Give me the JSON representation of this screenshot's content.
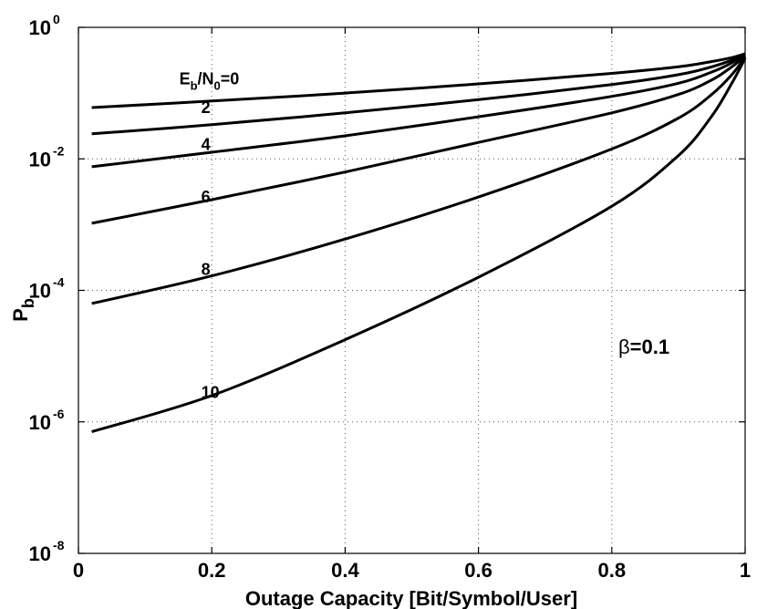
{
  "chart_data": {
    "type": "line",
    "title": "",
    "xlabel": "Outage Capacity [Bit/Symbol/User]",
    "ylabel": "P_b",
    "ylabel_main": "P",
    "ylabel_sub": "b",
    "xlim": [
      0,
      1
    ],
    "ylim_log10": [
      -8,
      0
    ],
    "yscale": "log",
    "grid": true,
    "x_ticks": [
      "0",
      "0.2",
      "0.4",
      "0.6",
      "0.8",
      "1"
    ],
    "x_tick_values": [
      0,
      0.2,
      0.4,
      0.6,
      0.8,
      1
    ],
    "y_ticks": [
      {
        "value": 0,
        "base": "10",
        "exp": "0"
      },
      {
        "value": -2,
        "base": "10",
        "exp": "-2"
      },
      {
        "value": -4,
        "base": "10",
        "exp": "-4"
      },
      {
        "value": -6,
        "base": "10",
        "exp": "-6"
      },
      {
        "value": -8,
        "base": "10",
        "exp": "-8"
      }
    ],
    "annotation": {
      "symbol": "β",
      "text": "=0.1"
    },
    "first_label": {
      "E": "E",
      "b": "b",
      "slash": "/N",
      "zero": "0",
      "eq": "=0"
    },
    "series": [
      {
        "name": "Eb/N0=0",
        "label": "",
        "label_at": [
          0.18,
          -0.78
        ],
        "x": [
          0.02,
          0.2,
          0.4,
          0.6,
          0.8,
          0.9,
          0.95,
          0.98,
          1.0
        ],
        "log10_y": [
          -1.22,
          -1.12,
          -1.0,
          -0.86,
          -0.7,
          -0.6,
          -0.52,
          -0.46,
          -0.4
        ]
      },
      {
        "name": "Eb/N0=2",
        "label": "2",
        "label_at": [
          0.18,
          -1.22
        ],
        "x": [
          0.02,
          0.2,
          0.4,
          0.6,
          0.8,
          0.9,
          0.95,
          0.98,
          1.0
        ],
        "log10_y": [
          -1.62,
          -1.48,
          -1.3,
          -1.1,
          -0.87,
          -0.72,
          -0.6,
          -0.5,
          -0.42
        ]
      },
      {
        "name": "Eb/N0=4",
        "label": "4",
        "label_at": [
          0.18,
          -1.78
        ],
        "x": [
          0.02,
          0.2,
          0.4,
          0.6,
          0.8,
          0.9,
          0.95,
          0.98,
          1.0
        ],
        "log10_y": [
          -2.12,
          -1.9,
          -1.65,
          -1.36,
          -1.05,
          -0.85,
          -0.68,
          -0.54,
          -0.42
        ]
      },
      {
        "name": "Eb/N0=6",
        "label": "6",
        "label_at": [
          0.18,
          -2.58
        ],
        "x": [
          0.02,
          0.2,
          0.4,
          0.6,
          0.8,
          0.9,
          0.95,
          0.98,
          1.0
        ],
        "log10_y": [
          -2.98,
          -2.62,
          -2.2,
          -1.75,
          -1.3,
          -1.02,
          -0.8,
          -0.6,
          -0.44
        ]
      },
      {
        "name": "Eb/N0=8",
        "label": "8",
        "label_at": [
          0.18,
          -3.68
        ],
        "x": [
          0.02,
          0.2,
          0.4,
          0.6,
          0.8,
          0.9,
          0.95,
          0.98,
          1.0
        ],
        "log10_y": [
          -4.2,
          -3.78,
          -3.22,
          -2.58,
          -1.85,
          -1.38,
          -1.02,
          -0.72,
          -0.45
        ]
      },
      {
        "name": "Eb/N0=10",
        "label": "10",
        "label_at": [
          0.18,
          -5.55
        ],
        "x": [
          0.02,
          0.2,
          0.4,
          0.6,
          0.8,
          0.9,
          0.95,
          0.98,
          1.0
        ],
        "log10_y": [
          -6.15,
          -5.6,
          -4.75,
          -3.8,
          -2.72,
          -1.95,
          -1.35,
          -0.85,
          -0.47
        ]
      }
    ]
  }
}
